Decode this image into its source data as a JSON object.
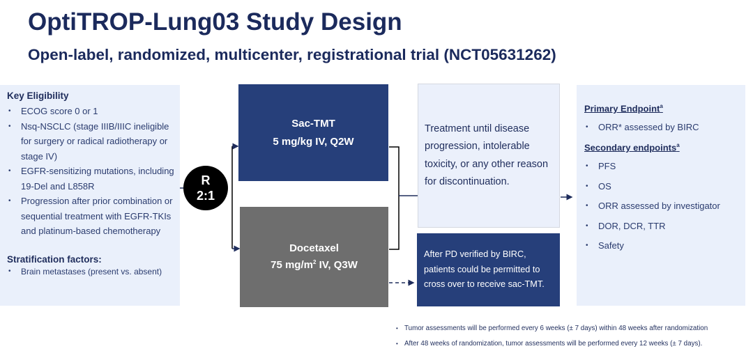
{
  "title": "OptiTROP-Lung03 Study Design",
  "subtitle": "Open-label, randomized, multicenter, registrational trial (NCT05631262)",
  "eligibility": {
    "heading": "Key Eligibility",
    "items": [
      "ECOG score 0 or 1",
      "Nsq-NSCLC (stage IIIB/IIIC ineligible for surgery or radical radiotherapy or stage IV)",
      "EGFR-sensitizing mutations, including 19-Del and L858R",
      "Progression after prior combination or sequential treatment with EGFR-TKIs and platinum-based chemotherapy"
    ],
    "strat_heading": "Stratification factors:",
    "strat_items": [
      "Brain metastases (present vs. absent)"
    ]
  },
  "randomization": {
    "line1": "R",
    "line2": "2:1"
  },
  "arms": {
    "sac": {
      "name": "Sac-TMT",
      "dose": "5 mg/kg IV, Q2W"
    },
    "doc": {
      "name": "Docetaxel",
      "dose_pre": "75 mg/m",
      "dose_sup": "2",
      "dose_post": " IV, Q3W"
    }
  },
  "treatment_text": "Treatment until disease progression, intolerable toxicity, or any other reason for discontinuation.",
  "crossover_text": "After PD verified by BIRC, patients could be permitted to cross over to receive sac-TMT.",
  "endpoints": {
    "primary_heading": "Primary Endpoint",
    "primary_sup": "a",
    "primary": [
      "ORR* assessed by BIRC"
    ],
    "secondary_heading": "Secondary endpoints",
    "secondary_sup": "a",
    "secondary": [
      "PFS",
      "OS",
      "ORR assessed by investigator",
      "DOR, DCR, TTR",
      "Safety"
    ]
  },
  "footnotes": [
    "Tumor assessments will be performed every 6 weeks (± 7 days) within 48 weeks after randomization",
    "After 48 weeks of randomization, tumor assessments will be performed every 12 weeks (± 7 days)."
  ],
  "colors": {
    "navy": "#263f7a",
    "gray": "#6e6e6e",
    "light": "#eaf0fb",
    "text": "#1f2d5c"
  }
}
